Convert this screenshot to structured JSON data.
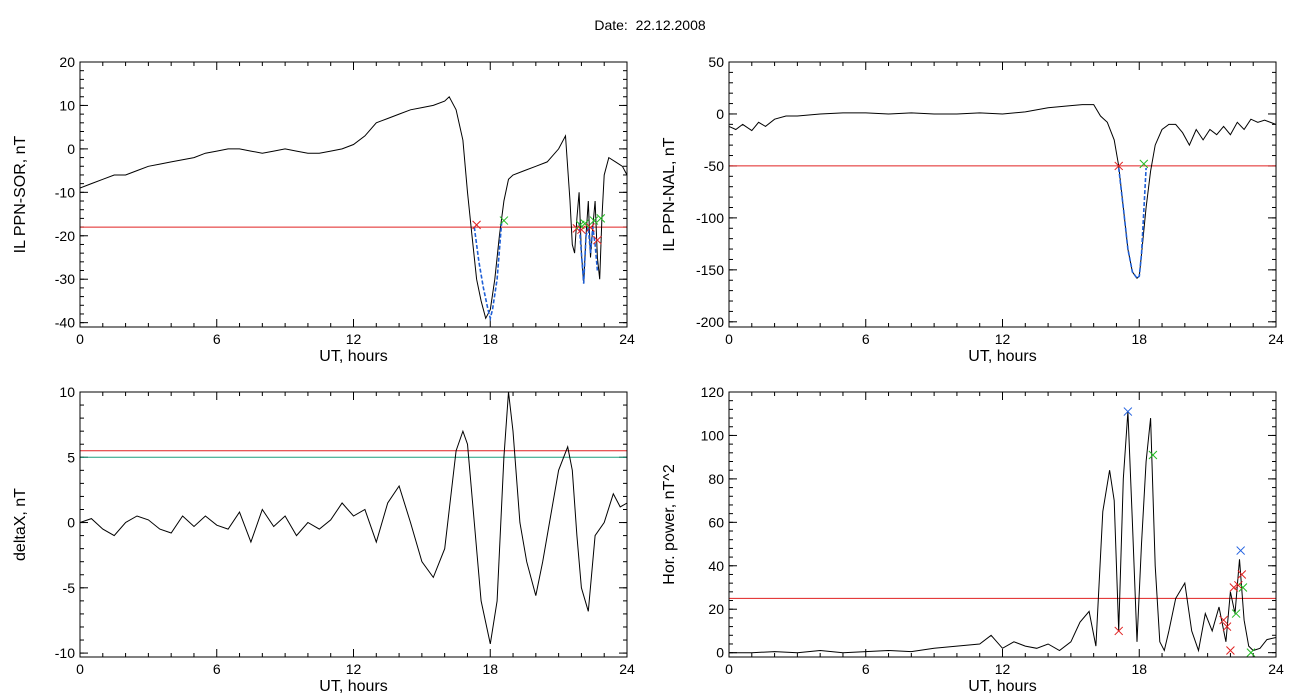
{
  "page": {
    "title": "Date:  22.12.2008"
  },
  "colors": {
    "trace": "#000000",
    "segment": "#1f5fd6",
    "threshold": "#e02020",
    "secondary_threshold": "#1f9f7f",
    "start_mark": "#e02020",
    "end_mark": "#22bb22",
    "peak_mark": "#2060e0"
  },
  "chart_data": [
    {
      "id": "il-ppn-sor",
      "type": "line",
      "title": "",
      "xlabel": "UT, hours",
      "ylabel": "IL PPN-SOR, nT",
      "xlim": [
        0,
        24
      ],
      "ylim": [
        -41,
        20
      ],
      "xticks": [
        0,
        6,
        12,
        18,
        24
      ],
      "yticks": [
        20,
        10,
        0,
        -10,
        -20,
        -30,
        -40
      ],
      "grid": false,
      "series": [
        {
          "x": [
            0,
            0.5,
            1,
            1.5,
            2,
            2.5,
            3,
            3.5,
            4,
            4.5,
            5,
            5.5,
            6,
            6.5,
            7,
            7.5,
            8,
            8.5,
            9,
            9.5,
            10,
            10.5,
            11,
            11.5,
            12,
            12.5,
            13,
            13.5,
            14,
            14.5,
            15,
            15.5,
            16,
            16.2,
            16.5,
            16.8,
            17,
            17.2,
            17.4,
            17.6,
            17.8,
            18,
            18.2,
            18.4,
            18.6,
            18.8,
            19,
            19.5,
            20,
            20.5,
            21,
            21.3,
            21.5,
            21.6,
            21.7,
            21.8,
            21.9,
            22,
            22.1,
            22.2,
            22.3,
            22.4,
            22.5,
            22.6,
            22.7,
            22.8,
            22.9,
            23,
            23.2,
            23.5,
            23.8,
            24
          ],
          "y": [
            -9,
            -8,
            -7,
            -6,
            -6,
            -5,
            -4,
            -3.5,
            -3,
            -2.5,
            -2,
            -1,
            -0.5,
            0,
            0,
            -0.5,
            -1,
            -0.5,
            0,
            -0.5,
            -1,
            -1,
            -0.5,
            0,
            1,
            3,
            6,
            7,
            8,
            9,
            9.5,
            10,
            11,
            12,
            9,
            2,
            -10,
            -20,
            -30,
            -35,
            -39,
            -37,
            -30,
            -20,
            -12,
            -7,
            -6,
            -5,
            -4,
            -3,
            0,
            3,
            -12,
            -22,
            -24,
            -16,
            -10,
            -24,
            -31,
            -20,
            -12,
            -25,
            -18,
            -12,
            -25,
            -30,
            -16,
            -6,
            -2,
            -3,
            -4,
            -6
          ],
          "color": "#000000"
        }
      ],
      "highlight_segments": [
        {
          "x": [
            17.3,
            17.5,
            17.7,
            17.9,
            18,
            18.1,
            18.3,
            18.5
          ],
          "y": [
            -18,
            -26,
            -32,
            -37,
            -39,
            -37,
            -30,
            -17
          ],
          "color": "#1f5fd6"
        },
        {
          "x": [
            21.9,
            22,
            22.1,
            22.2,
            22.3,
            22.4,
            22.5,
            22.6,
            22.7
          ],
          "y": [
            -17,
            -24,
            -31,
            -20,
            -18,
            -24,
            -18,
            -22,
            -28
          ],
          "color": "#1f5fd6"
        }
      ],
      "hlines": [
        {
          "y": -18,
          "color": "#e02020"
        }
      ],
      "markers": [
        {
          "x": 17.4,
          "y": -17.5,
          "color": "#e02020"
        },
        {
          "x": 18.6,
          "y": -16.5,
          "color": "#22bb22"
        },
        {
          "x": 21.8,
          "y": -18.3,
          "color": "#e02020"
        },
        {
          "x": 21.95,
          "y": -17.5,
          "color": "#22bb22"
        },
        {
          "x": 22.0,
          "y": -18.6,
          "color": "#e02020"
        },
        {
          "x": 22.15,
          "y": -17.2,
          "color": "#22bb22"
        },
        {
          "x": 22.4,
          "y": -18.1,
          "color": "#e02020"
        },
        {
          "x": 22.55,
          "y": -16.5,
          "color": "#22bb22"
        },
        {
          "x": 22.7,
          "y": -21,
          "color": "#e02020"
        },
        {
          "x": 22.85,
          "y": -16,
          "color": "#22bb22"
        }
      ]
    },
    {
      "id": "il-ppn-nal",
      "type": "line",
      "title": "",
      "xlabel": "UT, hours",
      "ylabel": "IL PPN-NAL, nT",
      "xlim": [
        0,
        24
      ],
      "ylim": [
        -205,
        50
      ],
      "xticks": [
        0,
        6,
        12,
        18,
        24
      ],
      "yticks": [
        50,
        0,
        -50,
        -100,
        -150,
        -200
      ],
      "grid": false,
      "series": [
        {
          "x": [
            0,
            0.3,
            0.6,
            1,
            1.3,
            1.6,
            2,
            2.5,
            3,
            3.5,
            4,
            5,
            6,
            7,
            8,
            9,
            10,
            11,
            12,
            13,
            14,
            15,
            15.5,
            16,
            16.3,
            16.6,
            16.9,
            17.1,
            17.3,
            17.5,
            17.7,
            17.9,
            18,
            18.1,
            18.3,
            18.5,
            18.7,
            19,
            19.3,
            19.6,
            19.9,
            20.2,
            20.5,
            20.8,
            21.1,
            21.4,
            21.7,
            22,
            22.3,
            22.6,
            22.9,
            23.2,
            23.5,
            24
          ],
          "y": [
            -12,
            -15,
            -10,
            -16,
            -8,
            -12,
            -5,
            -2,
            -2,
            -1,
            0,
            1,
            1,
            0,
            1,
            0,
            0,
            1,
            0,
            2,
            6,
            8,
            9,
            9,
            -2,
            -8,
            -25,
            -50,
            -90,
            -130,
            -152,
            -158,
            -156,
            -135,
            -90,
            -55,
            -30,
            -15,
            -10,
            -10,
            -18,
            -30,
            -15,
            -25,
            -15,
            -20,
            -12,
            -20,
            -8,
            -15,
            -5,
            -8,
            -6,
            -10
          ],
          "color": "#000000"
        }
      ],
      "highlight_segments": [
        {
          "x": [
            17.1,
            17.3,
            17.5,
            17.7,
            17.9,
            18,
            18.1,
            18.3
          ],
          "y": [
            -52,
            -90,
            -130,
            -152,
            -158,
            -156,
            -135,
            -52
          ],
          "color": "#1f5fd6"
        }
      ],
      "hlines": [
        {
          "y": -50,
          "color": "#e02020"
        }
      ],
      "markers": [
        {
          "x": 17.1,
          "y": -50,
          "color": "#e02020"
        },
        {
          "x": 18.2,
          "y": -48,
          "color": "#22bb22"
        }
      ]
    },
    {
      "id": "deltax",
      "type": "line",
      "title": "",
      "xlabel": "UT, hours",
      "ylabel": "deltaX, nT",
      "xlim": [
        0,
        24
      ],
      "ylim": [
        -10.3,
        10
      ],
      "xticks": [
        0,
        6,
        12,
        18,
        24
      ],
      "yticks": [
        10,
        5,
        0,
        -5,
        -10
      ],
      "grid": false,
      "series": [
        {
          "x": [
            0,
            0.5,
            1,
            1.5,
            2,
            2.5,
            3,
            3.5,
            4,
            4.5,
            5,
            5.5,
            6,
            6.5,
            7,
            7.5,
            8,
            8.5,
            9,
            9.5,
            10,
            10.5,
            11,
            11.5,
            12,
            12.5,
            13,
            13.5,
            14,
            14.5,
            15,
            15.5,
            16,
            16.5,
            16.8,
            17,
            17.3,
            17.6,
            18,
            18.3,
            18.6,
            18.8,
            19,
            19.3,
            19.6,
            20,
            20.3,
            20.6,
            21,
            21.4,
            21.6,
            21.8,
            22,
            22.3,
            22.6,
            23,
            23.4,
            23.7,
            24
          ],
          "y": [
            0,
            0.3,
            -0.5,
            -1,
            0,
            0.5,
            0.2,
            -0.5,
            -0.8,
            0.5,
            -0.3,
            0.5,
            -0.2,
            -0.5,
            0.8,
            -1.5,
            1,
            -0.3,
            0.5,
            -1,
            0,
            -0.5,
            0.2,
            1.5,
            0.5,
            1,
            -1.5,
            1.5,
            2.8,
            0,
            -3,
            -4.2,
            -2,
            5.5,
            7,
            6,
            0,
            -6,
            -9.3,
            -6,
            5,
            10,
            7,
            0,
            -3,
            -5.6,
            -3,
            0,
            4,
            5.8,
            4,
            -1,
            -5,
            -6.8,
            -1,
            0,
            2.2,
            1.2,
            1.5
          ],
          "color": "#000000"
        }
      ],
      "hlines": [
        {
          "y": 5.5,
          "color": "#e02020"
        },
        {
          "y": 5,
          "color": "#1f9f7f"
        }
      ],
      "markers": []
    },
    {
      "id": "hor-power",
      "type": "line",
      "title": "",
      "xlabel": "UT, hours",
      "ylabel": "Hor. power, nT^2",
      "xlim": [
        0,
        24
      ],
      "ylim": [
        -2,
        120
      ],
      "xticks": [
        0,
        6,
        12,
        18,
        24
      ],
      "yticks": [
        120,
        100,
        80,
        60,
        40,
        20,
        0
      ],
      "grid": false,
      "series": [
        {
          "x": [
            0,
            1,
            2,
            3,
            4,
            5,
            6,
            7,
            8,
            9,
            10,
            11,
            11.5,
            12,
            12.5,
            13,
            13.5,
            14,
            14.5,
            15,
            15.4,
            15.8,
            16.1,
            16.4,
            16.7,
            16.9,
            17.1,
            17.3,
            17.5,
            17.7,
            17.9,
            18.1,
            18.3,
            18.5,
            18.7,
            18.9,
            19.1,
            19.3,
            19.6,
            20,
            20.3,
            20.6,
            20.9,
            21.2,
            21.5,
            21.8,
            22,
            22.2,
            22.4,
            22.6,
            22.8,
            23,
            23.3,
            23.6,
            24
          ],
          "y": [
            0,
            0,
            0.5,
            0,
            1,
            0,
            0.5,
            1,
            0.5,
            2,
            3,
            4,
            8,
            2,
            5,
            3,
            2,
            4,
            1,
            5,
            14,
            19,
            3,
            65,
            84,
            70,
            10,
            80,
            111,
            60,
            5,
            50,
            88,
            108,
            40,
            5,
            1,
            10,
            25,
            32,
            10,
            1,
            18,
            10,
            21,
            5,
            28,
            18,
            43,
            15,
            3,
            1,
            2,
            6,
            7
          ],
          "color": "#000000"
        }
      ],
      "hlines": [
        {
          "y": 25,
          "color": "#e02020"
        }
      ],
      "markers": [
        {
          "x": 17.1,
          "y": 10,
          "color": "#e02020"
        },
        {
          "x": 17.5,
          "y": 111,
          "color": "#2060e0"
        },
        {
          "x": 18.6,
          "y": 91,
          "color": "#22bb22"
        },
        {
          "x": 21.7,
          "y": 15,
          "color": "#e02020"
        },
        {
          "x": 21.85,
          "y": 12,
          "color": "#e02020"
        },
        {
          "x": 22.0,
          "y": 1,
          "color": "#e02020"
        },
        {
          "x": 22.15,
          "y": 30,
          "color": "#e02020"
        },
        {
          "x": 22.25,
          "y": 18,
          "color": "#22bb22"
        },
        {
          "x": 22.35,
          "y": 31,
          "color": "#e02020"
        },
        {
          "x": 22.45,
          "y": 47,
          "color": "#2060e0"
        },
        {
          "x": 22.55,
          "y": 30,
          "color": "#22bb22"
        },
        {
          "x": 22.5,
          "y": 36,
          "color": "#e02020"
        },
        {
          "x": 22.9,
          "y": 0,
          "color": "#22bb22"
        }
      ]
    }
  ]
}
